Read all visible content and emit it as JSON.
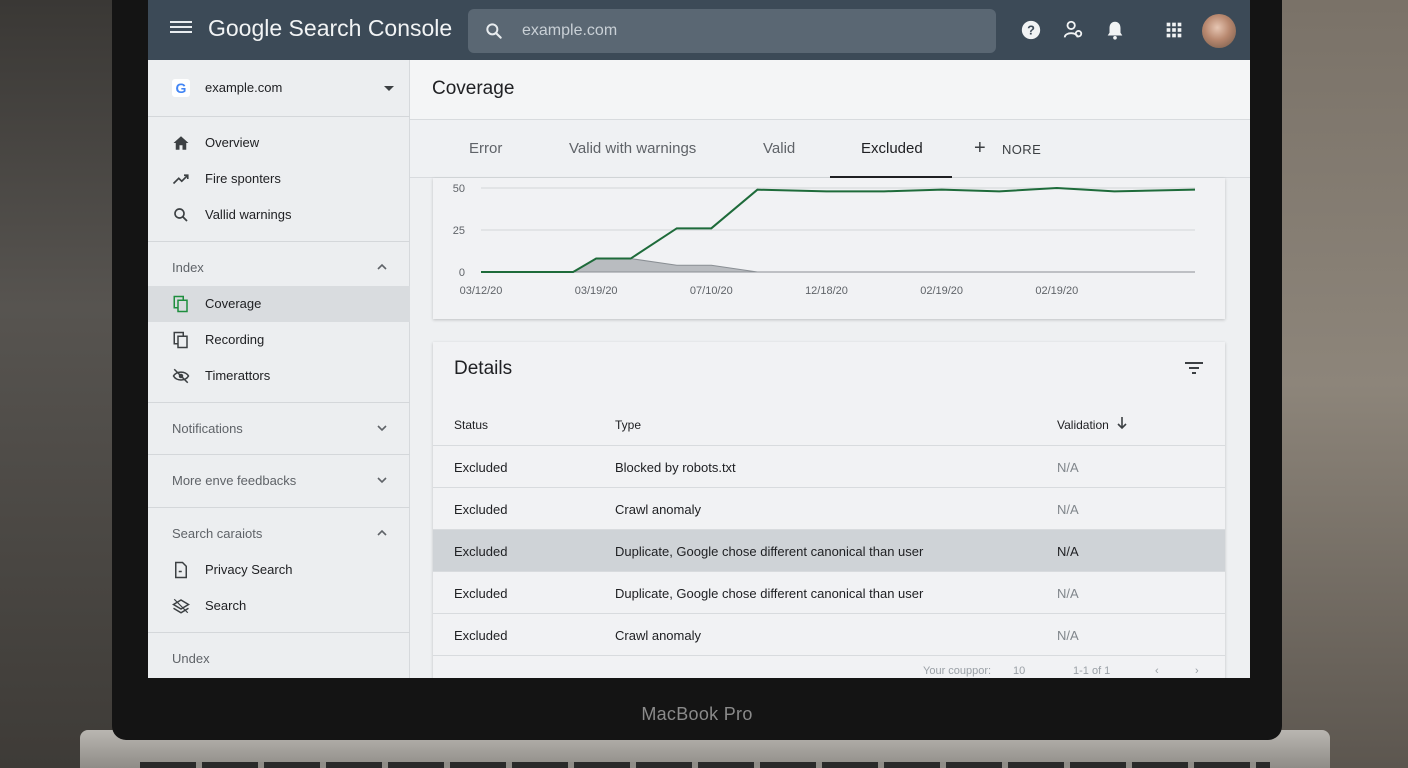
{
  "app": {
    "title": "Google Search Console",
    "device_label": "MacBook Pro"
  },
  "search": {
    "placeholder": "example.com"
  },
  "property": {
    "name": "example.com",
    "logo_letter": "G"
  },
  "sidebar": {
    "top_items": [
      {
        "label": "Overview",
        "icon": "home-icon"
      },
      {
        "label": "Fire sponters",
        "icon": "trending-icon"
      },
      {
        "label": "Vallid warnings",
        "icon": "search-icon"
      }
    ],
    "index_section": {
      "label": "Index",
      "items": [
        {
          "label": "Coverage",
          "icon": "file-copy-icon",
          "active": true
        },
        {
          "label": "Recording",
          "icon": "pages-icon"
        },
        {
          "label": "Timerattors",
          "icon": "eye-off-icon"
        }
      ]
    },
    "notifications_label": "Notifications",
    "more_feedbacks_label": "More enve feedbacks",
    "search_section": {
      "label": "Search caraiots",
      "items": [
        {
          "label": "Privacy Search",
          "icon": "page-arrow-icon"
        },
        {
          "label": "Search",
          "icon": "layers-icon"
        }
      ]
    },
    "bottom_label": "Undex"
  },
  "page": {
    "title": "Coverage"
  },
  "tabs": [
    {
      "label": "Error"
    },
    {
      "label": "Valid with warnings"
    },
    {
      "label": "Valid"
    },
    {
      "label": "Excluded",
      "active": true
    }
  ],
  "more_tab": {
    "label": "NORE"
  },
  "chart_data": {
    "type": "line",
    "title": "",
    "xlabel": "",
    "ylabel": "",
    "ylim": [
      0,
      50
    ],
    "yticks": [
      "50",
      "25",
      "0"
    ],
    "xticks": [
      "03/12/20",
      "03/19/20",
      "07/10/20",
      "12/18/20",
      "02/19/20",
      "02/19/20"
    ],
    "series": [
      {
        "color": "#1e6b3a",
        "x": [
          0,
          0.8,
          1,
          1.3,
          1.7,
          2,
          2.4,
          3,
          3.5,
          4,
          4.5,
          5,
          5.5,
          6.2
        ],
        "values": [
          0,
          0,
          8,
          8,
          26,
          26,
          49,
          48,
          48,
          49,
          48,
          50,
          48,
          49
        ]
      },
      {
        "color": "#8a8f94",
        "x": [
          0,
          0.8,
          1,
          1.3,
          1.7,
          2,
          2.4,
          6.2
        ],
        "values": [
          0,
          0,
          8,
          8,
          4,
          4,
          0,
          0
        ]
      }
    ]
  },
  "details": {
    "title": "Details",
    "columns": {
      "status": "Status",
      "type": "Type",
      "validation": "Validation"
    },
    "rows": [
      {
        "status": "Excluded",
        "type": "Blocked by robots.txt",
        "validation": "N/A"
      },
      {
        "status": "Excluded",
        "type": "Crawl anomaly",
        "validation": "N/A"
      },
      {
        "status": "Excluded",
        "type": "Duplicate, Google chose different canonical than user",
        "validation": "N/A",
        "highlighted": true
      },
      {
        "status": "Excluded",
        "type": "Duplicate, Google chose different canonical than user",
        "validation": "N/A"
      },
      {
        "status": "Excluded",
        "type": "Crawl anomaly",
        "validation": "N/A"
      }
    ],
    "pager": {
      "rows_label": "Your couppor:",
      "rows_value": "10",
      "range": "1-1 of 1"
    }
  }
}
